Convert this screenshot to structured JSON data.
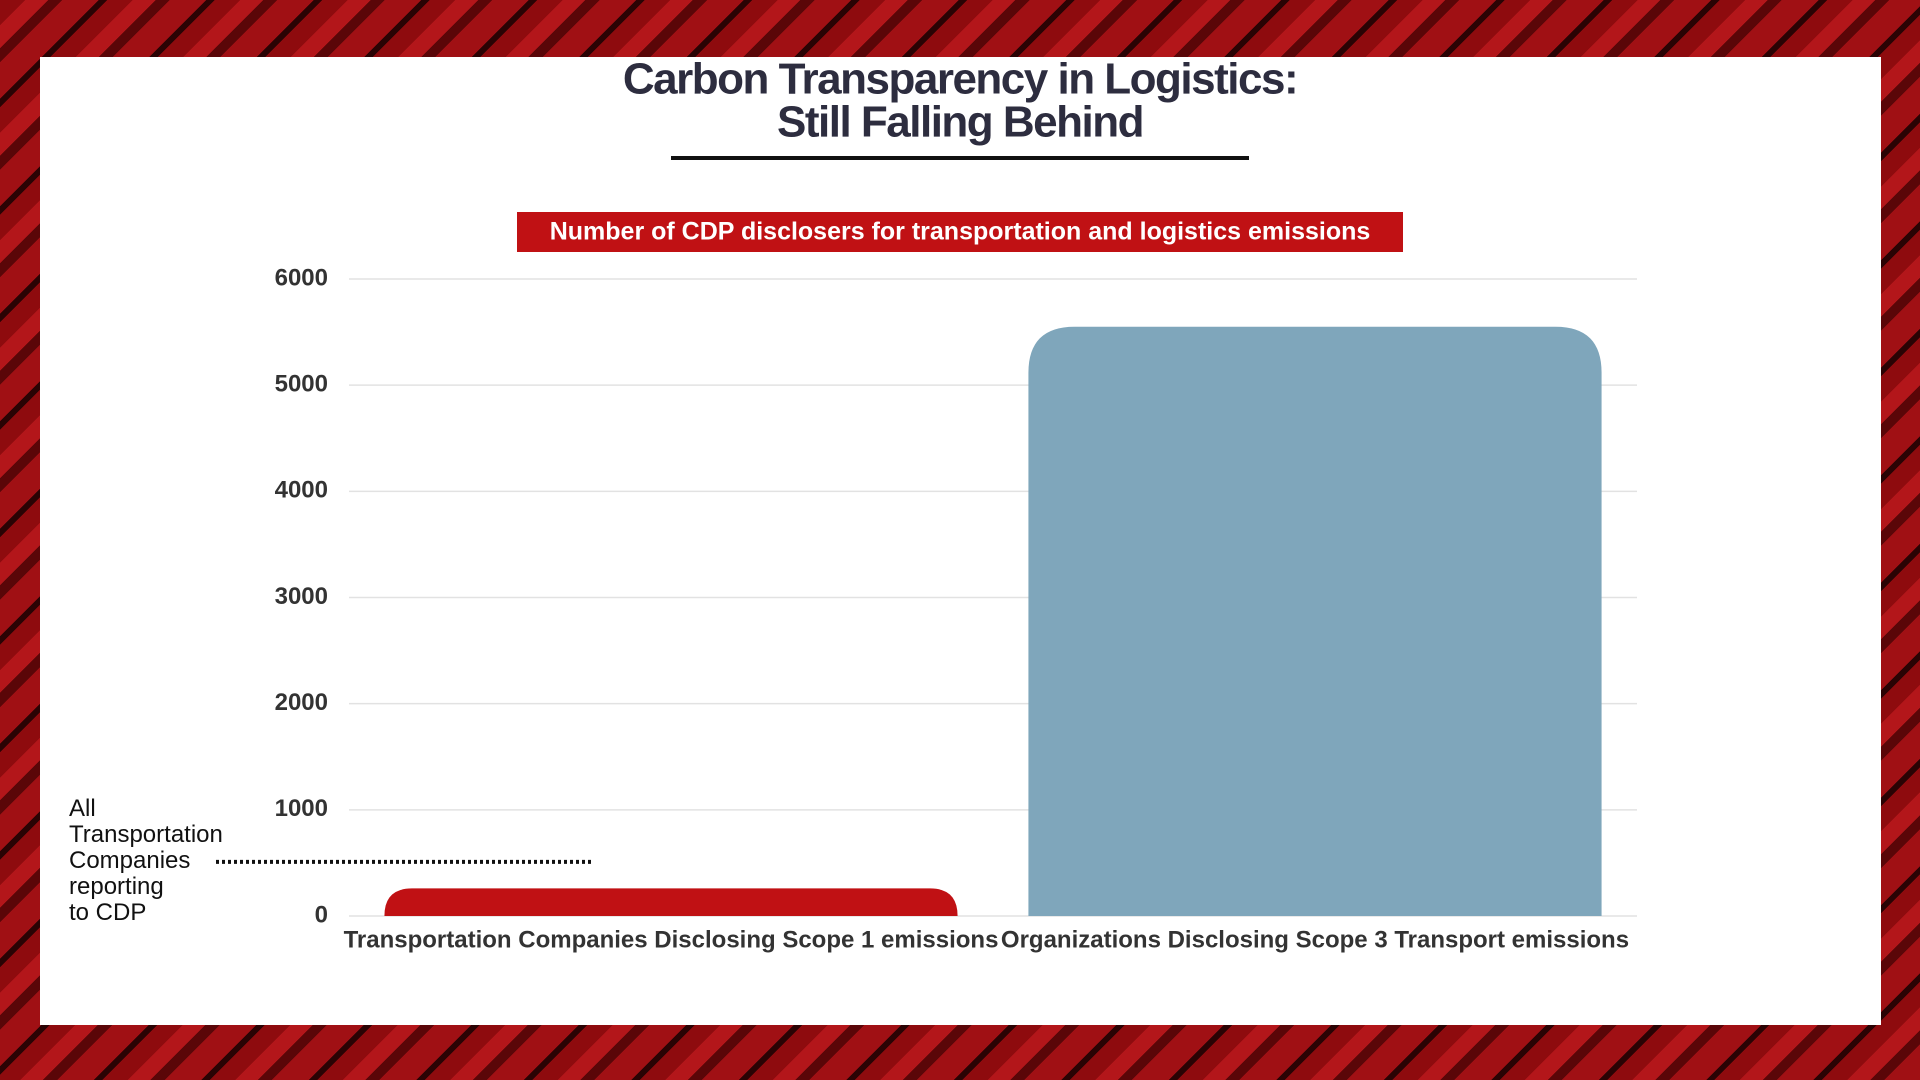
{
  "chart_data": {
    "type": "bar",
    "title_lines": [
      "Carbon Transparency in Logistics:",
      "Still Falling Behind"
    ],
    "subtitle": "Number of CDP disclosers for transportation and logistics emissions",
    "categories": [
      "Transportation Companies Disclosing Scope 1 emissions",
      "Organizations Disclosing Scope 3 Transport emissions"
    ],
    "values": [
      260,
      5550
    ],
    "colors": [
      "#c01114",
      "#7fa6bb"
    ],
    "ylim": [
      0,
      6000
    ],
    "yticks": [
      0,
      1000,
      2000,
      3000,
      4000,
      5000,
      6000
    ],
    "grid": true,
    "annotation": {
      "lines": [
        "All",
        "Transportation",
        "Companies",
        "reporting",
        "to CDP"
      ],
      "value": 510
    }
  }
}
